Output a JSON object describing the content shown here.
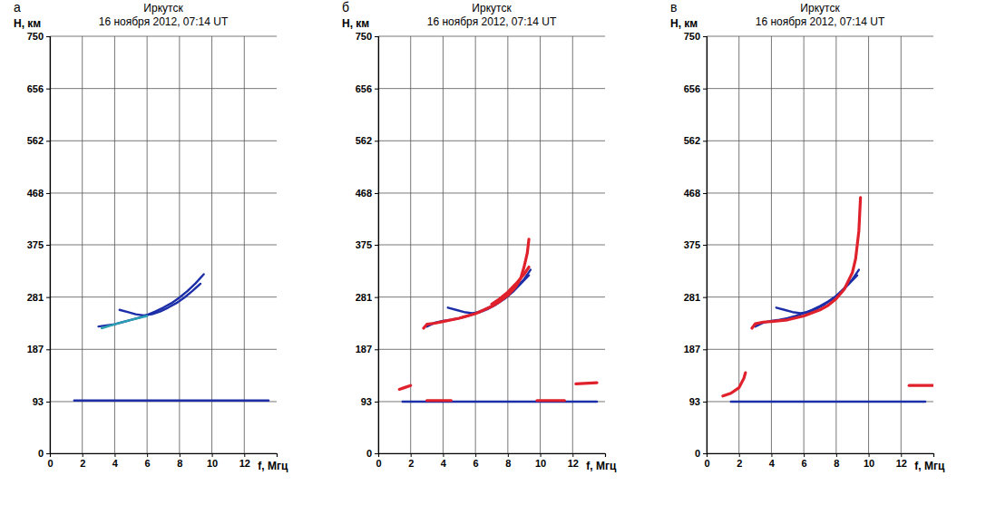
{
  "chart_data": [
    {
      "type": "line",
      "panel": "а",
      "title": "Иркутск",
      "subtitle": "16 ноября 2012, 07:14 UT",
      "x_label": "f, Мгц",
      "y_label": "Н, км",
      "xlim": [
        0,
        14
      ],
      "xticks": [
        0,
        2,
        4,
        6,
        8,
        10,
        12
      ],
      "ylim": [
        0,
        750
      ],
      "yticks": [
        0,
        93,
        187,
        281,
        375,
        468,
        562,
        656,
        750
      ],
      "grid": true,
      "series": [
        {
          "color": "#1c2fa8",
          "line_style": "solid",
          "x": [
            3.0,
            3.5,
            4.0,
            4.5,
            5.0,
            5.5,
            6.0,
            6.5,
            7.0,
            7.5,
            8.0,
            8.5,
            9.0,
            9.5
          ],
          "values": [
            228,
            230,
            232,
            236,
            240,
            244,
            249,
            255,
            262,
            270,
            280,
            292,
            306,
            322
          ]
        },
        {
          "color": "#1c2fa8",
          "line_style": "solid",
          "x": [
            4.3,
            4.8,
            5.3,
            5.8,
            6.3,
            6.8,
            7.3,
            7.8,
            8.3,
            8.8,
            9.3
          ],
          "values": [
            258,
            254,
            250,
            248,
            250,
            255,
            262,
            270,
            280,
            292,
            305
          ]
        },
        {
          "color": "#2aa0b0",
          "line_style": "solid",
          "x": [
            3.2,
            4.0,
            5.0,
            6.0
          ],
          "values": [
            225,
            232,
            240,
            247
          ]
        },
        {
          "color": "#1c2fa8",
          "line_style": "solid",
          "x": [
            1.5,
            13.5
          ],
          "values": [
            95,
            95
          ]
        }
      ]
    },
    {
      "type": "line",
      "panel": "б",
      "title": "Иркутск",
      "subtitle": "16 ноября 2012, 07:14 UT",
      "x_label": "f, Мгц",
      "y_label": "Н, км",
      "xlim": [
        0,
        14
      ],
      "xticks": [
        0,
        2,
        4,
        6,
        8,
        10,
        12
      ],
      "ylim": [
        0,
        750
      ],
      "yticks": [
        0,
        93,
        187,
        281,
        375,
        468,
        562,
        656,
        750
      ],
      "grid": true,
      "series": [
        {
          "color": "#1c2fa8",
          "line_style": "solid",
          "x": [
            1.5,
            13.5
          ],
          "values": [
            93,
            93
          ]
        },
        {
          "color": "#1c2fa8",
          "line_style": "solid",
          "x": [
            3.0,
            3.5,
            4.0,
            4.5,
            5.0,
            5.5,
            6.0,
            6.5,
            7.0,
            7.5,
            8.0,
            8.5,
            9.0,
            9.4
          ],
          "values": [
            228,
            235,
            238,
            240,
            243,
            247,
            252,
            258,
            265,
            273,
            283,
            297,
            313,
            330
          ]
        },
        {
          "color": "#1c2fa8",
          "line_style": "solid",
          "x": [
            4.3,
            4.8,
            5.3,
            5.8,
            6.3,
            6.8,
            7.3,
            7.8,
            8.3,
            8.8,
            9.3
          ],
          "values": [
            262,
            258,
            254,
            252,
            254,
            260,
            268,
            278,
            290,
            305,
            320
          ]
        },
        {
          "color": "#e0202a",
          "line_style": "solid",
          "x": [
            2.8,
            3.0,
            3.5,
            4.0,
            5.0,
            6.0,
            7.0,
            7.5,
            8.0,
            8.5,
            8.8,
            9.0,
            9.2,
            9.3
          ],
          "values": [
            225,
            232,
            234,
            237,
            243,
            251,
            264,
            273,
            284,
            300,
            315,
            335,
            360,
            385
          ]
        },
        {
          "color": "#e0202a",
          "line_style": "solid",
          "x": [
            7.0,
            7.5,
            8.0,
            8.5,
            9.0,
            9.3
          ],
          "values": [
            268,
            278,
            290,
            305,
            322,
            335
          ]
        },
        {
          "color": "#e0202a",
          "line_style": "solid",
          "x": [
            1.3,
            1.6,
            2.0
          ],
          "values": [
            115,
            118,
            122
          ]
        },
        {
          "color": "#e0202a",
          "line_style": "solid",
          "x": [
            3.0,
            4.5
          ],
          "values": [
            95,
            95
          ]
        },
        {
          "color": "#e0202a",
          "line_style": "solid",
          "x": [
            9.8,
            11.5
          ],
          "values": [
            95,
            95
          ]
        },
        {
          "color": "#e0202a",
          "line_style": "solid",
          "x": [
            12.2,
            13.5
          ],
          "values": [
            125,
            127
          ]
        }
      ]
    },
    {
      "type": "line",
      "panel": "в",
      "title": "Иркутск",
      "subtitle": "16 ноября 2012, 07:14 UT",
      "x_label": "f, Мгц",
      "y_label": "Н, км",
      "xlim": [
        0,
        14
      ],
      "xticks": [
        0,
        2,
        4,
        6,
        8,
        10,
        12
      ],
      "ylim": [
        0,
        750
      ],
      "yticks": [
        0,
        93,
        187,
        281,
        375,
        468,
        562,
        656,
        750
      ],
      "grid": true,
      "series": [
        {
          "color": "#1c2fa8",
          "line_style": "solid",
          "x": [
            1.5,
            13.5
          ],
          "values": [
            93,
            93
          ]
        },
        {
          "color": "#1c2fa8",
          "line_style": "solid",
          "x": [
            3.0,
            3.5,
            4.0,
            4.5,
            5.0,
            5.5,
            6.0,
            6.5,
            7.0,
            7.5,
            8.0,
            8.5,
            9.0,
            9.4
          ],
          "values": [
            228,
            235,
            238,
            240,
            243,
            247,
            252,
            258,
            265,
            273,
            283,
            297,
            313,
            330
          ]
        },
        {
          "color": "#1c2fa8",
          "line_style": "solid",
          "x": [
            4.3,
            4.8,
            5.3,
            5.8,
            6.3,
            6.8,
            7.3,
            7.8,
            8.3,
            8.8,
            9.3
          ],
          "values": [
            262,
            258,
            254,
            252,
            254,
            260,
            268,
            278,
            290,
            305,
            320
          ]
        },
        {
          "color": "#e0202a",
          "line_style": "solid",
          "x": [
            2.8,
            3.0,
            3.5,
            4.0,
            5.0,
            6.0,
            7.0,
            7.5,
            8.0,
            8.5,
            9.0,
            9.2,
            9.4,
            9.5
          ],
          "values": [
            225,
            233,
            236,
            237,
            240,
            247,
            258,
            266,
            278,
            295,
            325,
            350,
            400,
            460
          ]
        },
        {
          "color": "#e0202a",
          "line_style": "solid",
          "x": [
            1.0,
            1.5,
            2.0,
            2.3,
            2.4
          ],
          "values": [
            103,
            108,
            118,
            135,
            145
          ]
        },
        {
          "color": "#e0202a",
          "line_style": "solid",
          "x": [
            12.5,
            14.0
          ],
          "values": [
            122,
            122
          ]
        }
      ]
    }
  ]
}
